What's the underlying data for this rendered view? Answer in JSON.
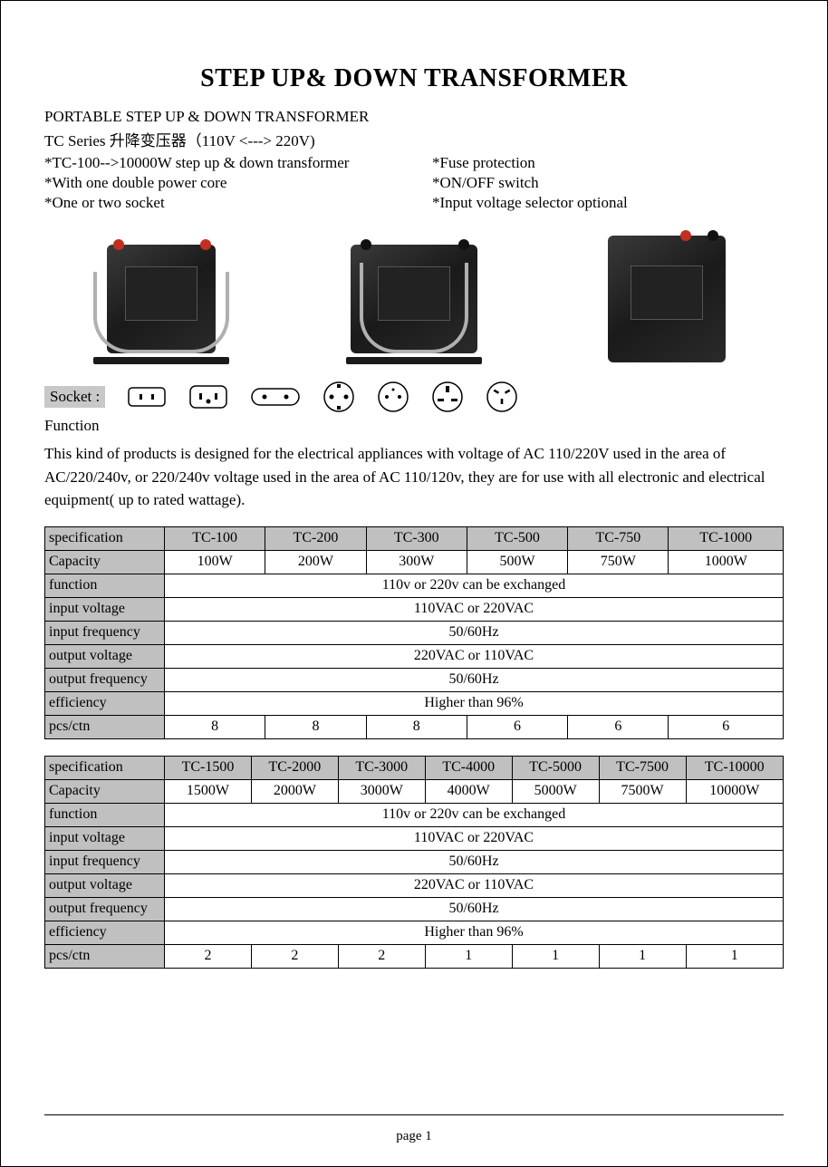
{
  "title": "STEP UP& DOWN TRANSFORMER",
  "subtitle1": "PORTABLE STEP UP & DOWN TRANSFORMER",
  "subtitle2": "TC Series 升降变压器（110V <---> 220V)",
  "features_left": [
    "*TC-100-->10000W step up & down transformer",
    "*With one double power core",
    "*One or two socket"
  ],
  "features_right": [
    "*Fuse protection",
    "*ON/OFF switch",
    "*Input voltage selector optional"
  ],
  "socket_label": "Socket :",
  "function_label": "Function",
  "description": "This kind of products is designed for the electrical appliances with voltage of AC 110/220V used in the area of AC/220/240v, or 220/240v voltage used in the area of AC 110/120v, they are for use with all electronic and electrical equipment( up to rated wattage).",
  "table1": {
    "header_label": "specification",
    "columns": [
      "TC-100",
      "TC-200",
      "TC-300",
      "TC-500",
      "TC-750",
      "TC-1000"
    ],
    "rows": [
      {
        "label": "Capacity",
        "cells": [
          "100W",
          "200W",
          "300W",
          "500W",
          "750W",
          "1000W"
        ]
      },
      {
        "label": "function",
        "span": "110v or 220v can be exchanged"
      },
      {
        "label": "input voltage",
        "span": "110VAC or 220VAC"
      },
      {
        "label": "input frequency",
        "span": "50/60Hz"
      },
      {
        "label": "output voltage",
        "span": "220VAC or 110VAC"
      },
      {
        "label": "output frequency",
        "span": "50/60Hz"
      },
      {
        "label": "efficiency",
        "span": "Higher than 96%"
      },
      {
        "label": "pcs/ctn",
        "cells": [
          "8",
          "8",
          "8",
          "6",
          "6",
          "6"
        ]
      }
    ]
  },
  "table2": {
    "header_label": "specification",
    "columns": [
      "TC-1500",
      "TC-2000",
      "TC-3000",
      "TC-4000",
      "TC-5000",
      "TC-7500",
      "TC-10000"
    ],
    "rows": [
      {
        "label": "Capacity",
        "cells": [
          "1500W",
          "2000W",
          "3000W",
          "4000W",
          "5000W",
          "7500W",
          "10000W"
        ]
      },
      {
        "label": "function",
        "span": "110v or 220v can be exchanged"
      },
      {
        "label": "input voltage",
        "span": "110VAC or 220VAC"
      },
      {
        "label": "input frequency",
        "span": "50/60Hz"
      },
      {
        "label": "output voltage",
        "span": "220VAC or 110VAC"
      },
      {
        "label": "output frequency",
        "span": "50/60Hz"
      },
      {
        "label": "efficiency",
        "span": "Higher than 96%"
      },
      {
        "label": "pcs/ctn",
        "cells": [
          "2",
          "2",
          "2",
          "1",
          "1",
          "1",
          "1"
        ]
      }
    ]
  },
  "page_label": "page  1",
  "colors": {
    "header_bg": "#c0c0c0",
    "border": "#000000",
    "text": "#000000"
  }
}
